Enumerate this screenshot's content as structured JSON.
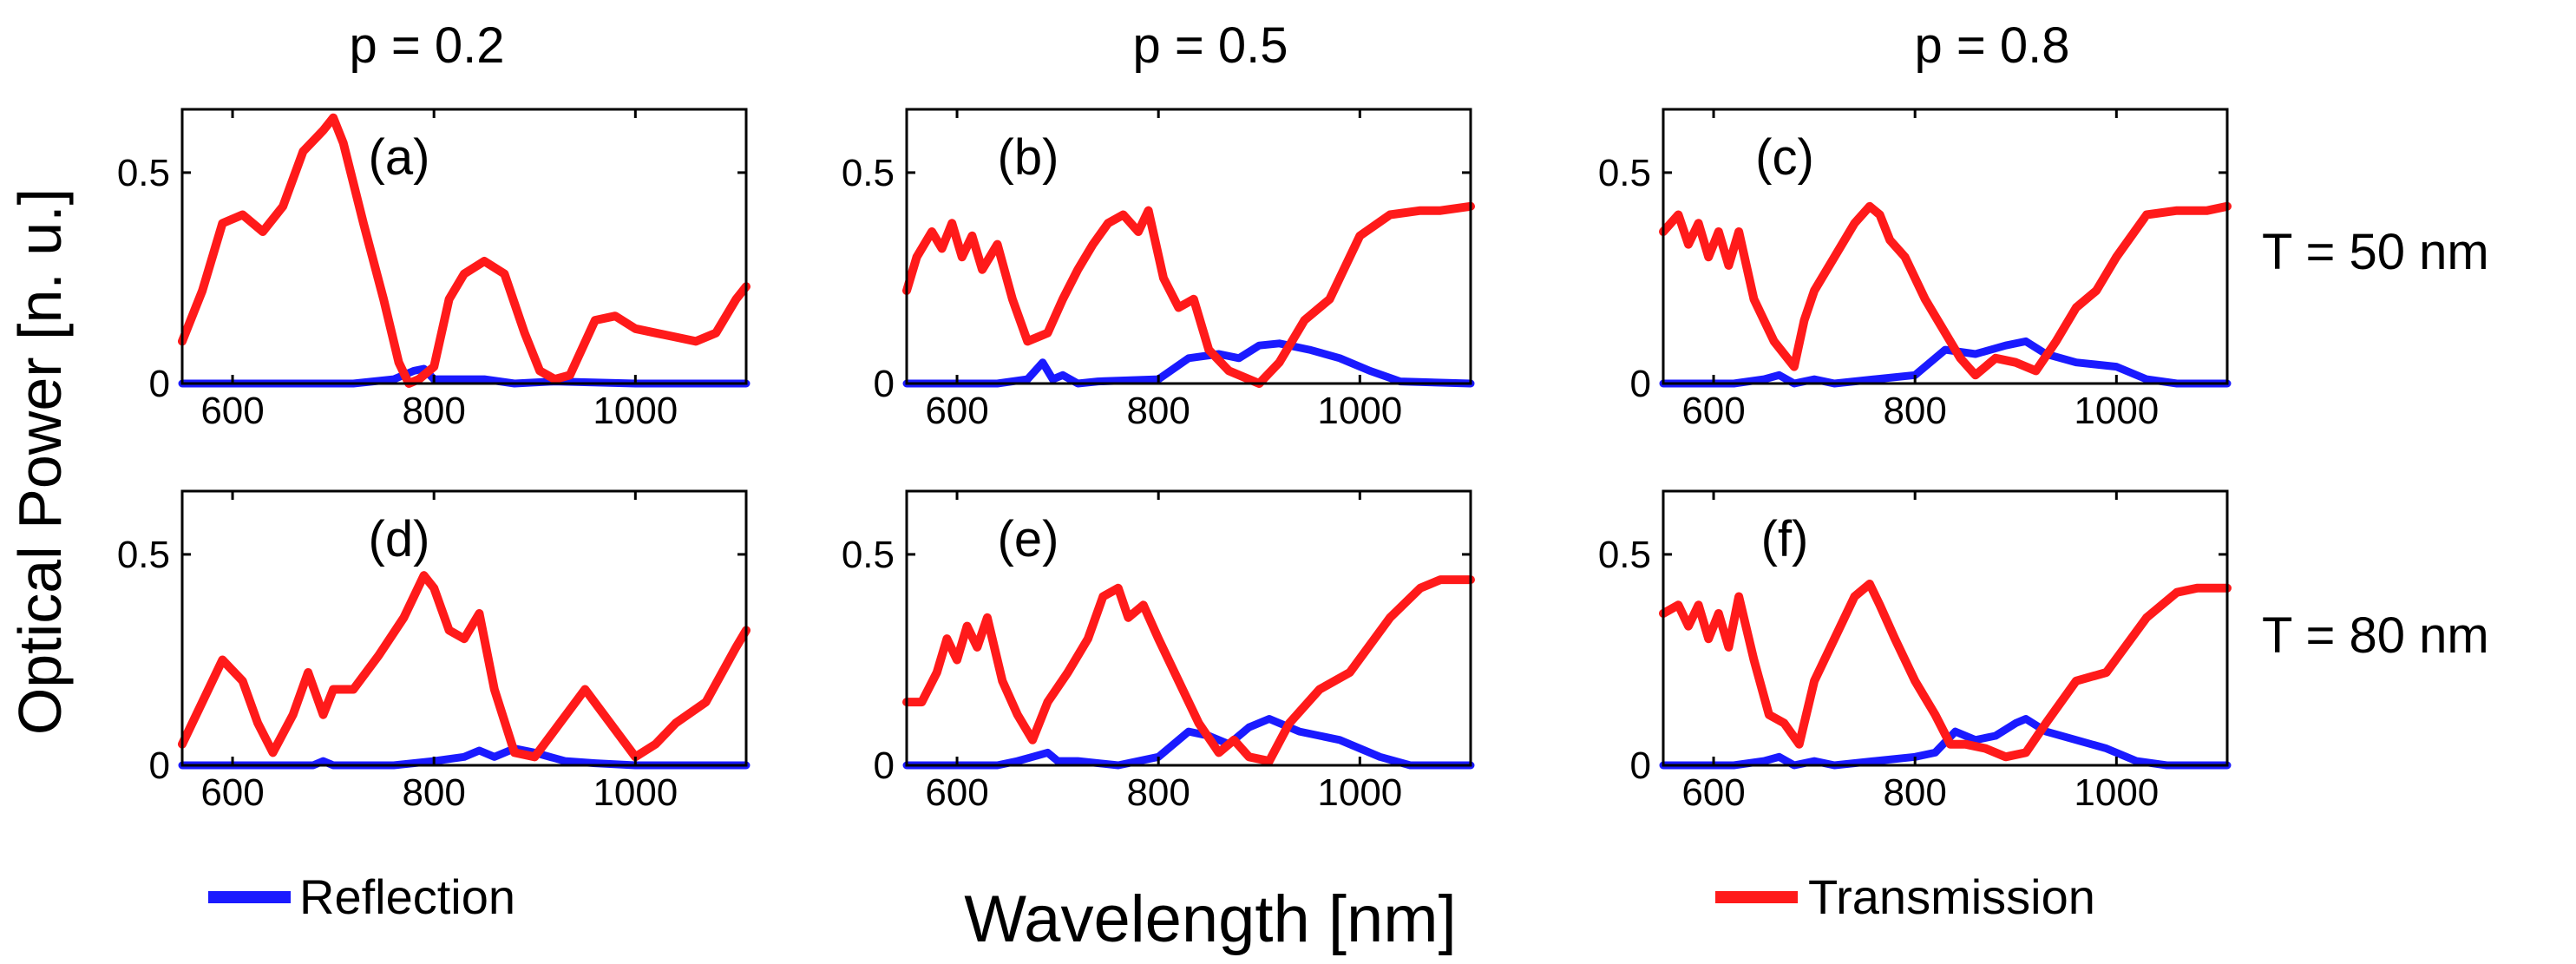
{
  "figure": {
    "column_titles": [
      "p = 0.2",
      "p = 0.5",
      "p = 0.8"
    ],
    "row_titles": [
      "T = 50 nm",
      "T = 80 nm"
    ],
    "ylabel": "Optical Power [n. u.]",
    "xlabel": "Wavelength [nm]",
    "legend": [
      {
        "label": "Reflection",
        "color": "#1a1aff"
      },
      {
        "label": "Transmission",
        "color": "#ff1a1a"
      }
    ]
  },
  "chart_data": [
    {
      "type": "line",
      "panel": "(a)",
      "p": "p = 0.2",
      "T": "T = 50 nm",
      "xlim": [
        550,
        1110
      ],
      "ylim": [
        0,
        0.65
      ],
      "xticks": [
        600,
        800,
        1000
      ],
      "xtick_labels": [
        "600",
        "800",
        "1000"
      ],
      "yticks": [
        0,
        0.5
      ],
      "ytick_labels": [
        "0",
        "0.5"
      ],
      "series": [
        {
          "name": "Transmission",
          "x": [
            550,
            570,
            590,
            610,
            630,
            650,
            670,
            690,
            700,
            710,
            730,
            750,
            765,
            775,
            785,
            800,
            815,
            830,
            850,
            870,
            890,
            905,
            920,
            935,
            960,
            980,
            1000,
            1020,
            1040,
            1060,
            1080,
            1100,
            1110
          ],
          "values": [
            0.1,
            0.22,
            0.38,
            0.4,
            0.36,
            0.42,
            0.55,
            0.6,
            0.63,
            0.57,
            0.38,
            0.2,
            0.05,
            0.0,
            0.01,
            0.04,
            0.2,
            0.26,
            0.29,
            0.26,
            0.12,
            0.03,
            0.01,
            0.02,
            0.15,
            0.16,
            0.13,
            0.12,
            0.11,
            0.1,
            0.12,
            0.2,
            0.23
          ]
        },
        {
          "name": "Reflection",
          "x": [
            550,
            720,
            760,
            780,
            790,
            800,
            830,
            850,
            880,
            920,
            1000,
            1110
          ],
          "values": [
            0,
            0,
            0.01,
            0.03,
            0.035,
            0.01,
            0.01,
            0.01,
            0.0,
            0.005,
            0.0,
            0.0
          ]
        }
      ]
    },
    {
      "type": "line",
      "panel": "(b)",
      "p": "p = 0.5",
      "T": "T = 50 nm",
      "xlim": [
        550,
        1110
      ],
      "ylim": [
        0,
        0.65
      ],
      "xticks": [
        600,
        800,
        1000
      ],
      "xtick_labels": [
        "600",
        "800",
        "1000"
      ],
      "yticks": [
        0,
        0.5
      ],
      "ytick_labels": [
        "0",
        "0.5"
      ],
      "series": [
        {
          "name": "Transmission",
          "x": [
            550,
            560,
            575,
            585,
            595,
            605,
            615,
            625,
            640,
            655,
            670,
            690,
            705,
            720,
            735,
            750,
            765,
            780,
            790,
            805,
            820,
            835,
            850,
            870,
            890,
            900,
            920,
            945,
            970,
            1000,
            1030,
            1060,
            1080,
            1110
          ],
          "values": [
            0.22,
            0.3,
            0.36,
            0.32,
            0.38,
            0.3,
            0.35,
            0.27,
            0.33,
            0.2,
            0.1,
            0.12,
            0.2,
            0.27,
            0.33,
            0.38,
            0.4,
            0.36,
            0.41,
            0.25,
            0.18,
            0.2,
            0.08,
            0.03,
            0.01,
            0.0,
            0.05,
            0.15,
            0.2,
            0.35,
            0.4,
            0.41,
            0.41,
            0.42
          ]
        },
        {
          "name": "Reflection",
          "x": [
            550,
            640,
            670,
            685,
            695,
            705,
            720,
            740,
            800,
            830,
            860,
            880,
            900,
            920,
            950,
            980,
            1010,
            1040,
            1110
          ],
          "values": [
            0,
            0.0,
            0.01,
            0.05,
            0.01,
            0.02,
            0.0,
            0.005,
            0.01,
            0.06,
            0.07,
            0.06,
            0.09,
            0.095,
            0.08,
            0.06,
            0.03,
            0.005,
            0.0
          ]
        }
      ]
    },
    {
      "type": "line",
      "panel": "(c)",
      "p": "p = 0.8",
      "T": "T = 50 nm",
      "xlim": [
        550,
        1110
      ],
      "ylim": [
        0,
        0.65
      ],
      "xticks": [
        600,
        800,
        1000
      ],
      "xtick_labels": [
        "600",
        "800",
        "1000"
      ],
      "yticks": [
        0,
        0.5
      ],
      "ytick_labels": [
        "0",
        "0.5"
      ],
      "series": [
        {
          "name": "Transmission",
          "x": [
            550,
            565,
            575,
            585,
            595,
            605,
            615,
            625,
            640,
            660,
            680,
            690,
            700,
            720,
            740,
            755,
            765,
            775,
            790,
            810,
            830,
            845,
            860,
            880,
            900,
            920,
            940,
            960,
            980,
            1000,
            1030,
            1060,
            1090,
            1110
          ],
          "values": [
            0.36,
            0.4,
            0.33,
            0.38,
            0.3,
            0.36,
            0.28,
            0.36,
            0.2,
            0.1,
            0.04,
            0.15,
            0.22,
            0.3,
            0.38,
            0.42,
            0.4,
            0.34,
            0.3,
            0.2,
            0.12,
            0.06,
            0.02,
            0.06,
            0.05,
            0.03,
            0.1,
            0.18,
            0.22,
            0.3,
            0.4,
            0.41,
            0.41,
            0.42
          ]
        },
        {
          "name": "Reflection",
          "x": [
            550,
            620,
            650,
            665,
            680,
            700,
            720,
            760,
            800,
            830,
            860,
            890,
            910,
            930,
            960,
            1000,
            1030,
            1060,
            1110
          ],
          "values": [
            0,
            0.0,
            0.01,
            0.02,
            0.0,
            0.01,
            0.0,
            0.01,
            0.02,
            0.08,
            0.07,
            0.09,
            0.1,
            0.07,
            0.05,
            0.04,
            0.01,
            0.0,
            0.0
          ]
        }
      ]
    },
    {
      "type": "line",
      "panel": "(d)",
      "p": "p = 0.2",
      "T": "T = 80 nm",
      "xlim": [
        550,
        1110
      ],
      "ylim": [
        0,
        0.65
      ],
      "xticks": [
        600,
        800,
        1000
      ],
      "xtick_labels": [
        "600",
        "800",
        "1000"
      ],
      "yticks": [
        0,
        0.5
      ],
      "ytick_labels": [
        "0",
        "0.5"
      ],
      "series": [
        {
          "name": "Transmission",
          "x": [
            550,
            570,
            590,
            610,
            625,
            640,
            660,
            675,
            690,
            700,
            720,
            745,
            770,
            790,
            800,
            815,
            830,
            845,
            860,
            880,
            900,
            925,
            950,
            975,
            1000,
            1020,
            1040,
            1070,
            1100,
            1110
          ],
          "values": [
            0.05,
            0.15,
            0.25,
            0.2,
            0.1,
            0.03,
            0.12,
            0.22,
            0.12,
            0.18,
            0.18,
            0.26,
            0.35,
            0.45,
            0.42,
            0.32,
            0.3,
            0.36,
            0.18,
            0.03,
            0.02,
            0.1,
            0.18,
            0.1,
            0.02,
            0.05,
            0.1,
            0.15,
            0.28,
            0.32
          ]
        },
        {
          "name": "Reflection",
          "x": [
            550,
            680,
            690,
            700,
            760,
            800,
            830,
            845,
            860,
            880,
            900,
            930,
            960,
            1000,
            1050,
            1110
          ],
          "values": [
            0,
            0,
            0.01,
            0.0,
            0.0,
            0.01,
            0.02,
            0.035,
            0.02,
            0.04,
            0.03,
            0.01,
            0.005,
            0.0,
            0.0,
            0.0
          ]
        }
      ]
    },
    {
      "type": "line",
      "panel": "(e)",
      "p": "p = 0.5",
      "T": "T = 80 nm",
      "xlim": [
        550,
        1110
      ],
      "ylim": [
        0,
        0.65
      ],
      "xticks": [
        600,
        800,
        1000
      ],
      "xtick_labels": [
        "600",
        "800",
        "1000"
      ],
      "yticks": [
        0,
        0.5
      ],
      "ytick_labels": [
        "0",
        "0.5"
      ],
      "series": [
        {
          "name": "Transmission",
          "x": [
            550,
            565,
            580,
            590,
            600,
            610,
            620,
            630,
            645,
            660,
            675,
            690,
            710,
            730,
            745,
            760,
            770,
            785,
            800,
            820,
            840,
            860,
            875,
            890,
            910,
            930,
            960,
            990,
            1030,
            1060,
            1080,
            1110
          ],
          "values": [
            0.15,
            0.15,
            0.22,
            0.3,
            0.25,
            0.33,
            0.28,
            0.35,
            0.2,
            0.12,
            0.06,
            0.15,
            0.22,
            0.3,
            0.4,
            0.42,
            0.35,
            0.38,
            0.3,
            0.2,
            0.1,
            0.03,
            0.06,
            0.02,
            0.01,
            0.1,
            0.18,
            0.22,
            0.35,
            0.42,
            0.44,
            0.44
          ]
        },
        {
          "name": "Reflection",
          "x": [
            550,
            640,
            660,
            675,
            690,
            700,
            720,
            760,
            800,
            830,
            850,
            870,
            890,
            910,
            940,
            980,
            1020,
            1050,
            1110
          ],
          "values": [
            0,
            0.0,
            0.01,
            0.02,
            0.03,
            0.01,
            0.01,
            0.0,
            0.02,
            0.08,
            0.07,
            0.05,
            0.09,
            0.11,
            0.08,
            0.06,
            0.02,
            0.0,
            0.0
          ]
        }
      ]
    },
    {
      "type": "line",
      "panel": "(f)",
      "p": "p = 0.8",
      "T": "T = 80 nm",
      "xlim": [
        550,
        1110
      ],
      "ylim": [
        0,
        0.65
      ],
      "xticks": [
        600,
        800,
        1000
      ],
      "xtick_labels": [
        "600",
        "800",
        "1000"
      ],
      "yticks": [
        0,
        0.5
      ],
      "ytick_labels": [
        "0",
        "0.5"
      ],
      "series": [
        {
          "name": "Transmission",
          "x": [
            550,
            565,
            575,
            585,
            595,
            605,
            615,
            625,
            640,
            655,
            670,
            685,
            700,
            720,
            740,
            755,
            765,
            780,
            800,
            820,
            835,
            850,
            870,
            890,
            910,
            930,
            960,
            990,
            1030,
            1060,
            1080,
            1110
          ],
          "values": [
            0.36,
            0.38,
            0.33,
            0.38,
            0.3,
            0.36,
            0.28,
            0.4,
            0.25,
            0.12,
            0.1,
            0.05,
            0.2,
            0.3,
            0.4,
            0.43,
            0.38,
            0.3,
            0.2,
            0.12,
            0.05,
            0.05,
            0.04,
            0.02,
            0.03,
            0.1,
            0.2,
            0.22,
            0.35,
            0.41,
            0.42,
            0.42
          ]
        },
        {
          "name": "Reflection",
          "x": [
            550,
            620,
            650,
            665,
            680,
            700,
            720,
            760,
            800,
            820,
            840,
            860,
            880,
            900,
            910,
            930,
            960,
            990,
            1020,
            1050,
            1110
          ],
          "values": [
            0,
            0.0,
            0.01,
            0.02,
            0.0,
            0.01,
            0.0,
            0.01,
            0.02,
            0.03,
            0.08,
            0.06,
            0.07,
            0.1,
            0.11,
            0.08,
            0.06,
            0.04,
            0.01,
            0.0,
            0.0
          ]
        }
      ]
    }
  ]
}
